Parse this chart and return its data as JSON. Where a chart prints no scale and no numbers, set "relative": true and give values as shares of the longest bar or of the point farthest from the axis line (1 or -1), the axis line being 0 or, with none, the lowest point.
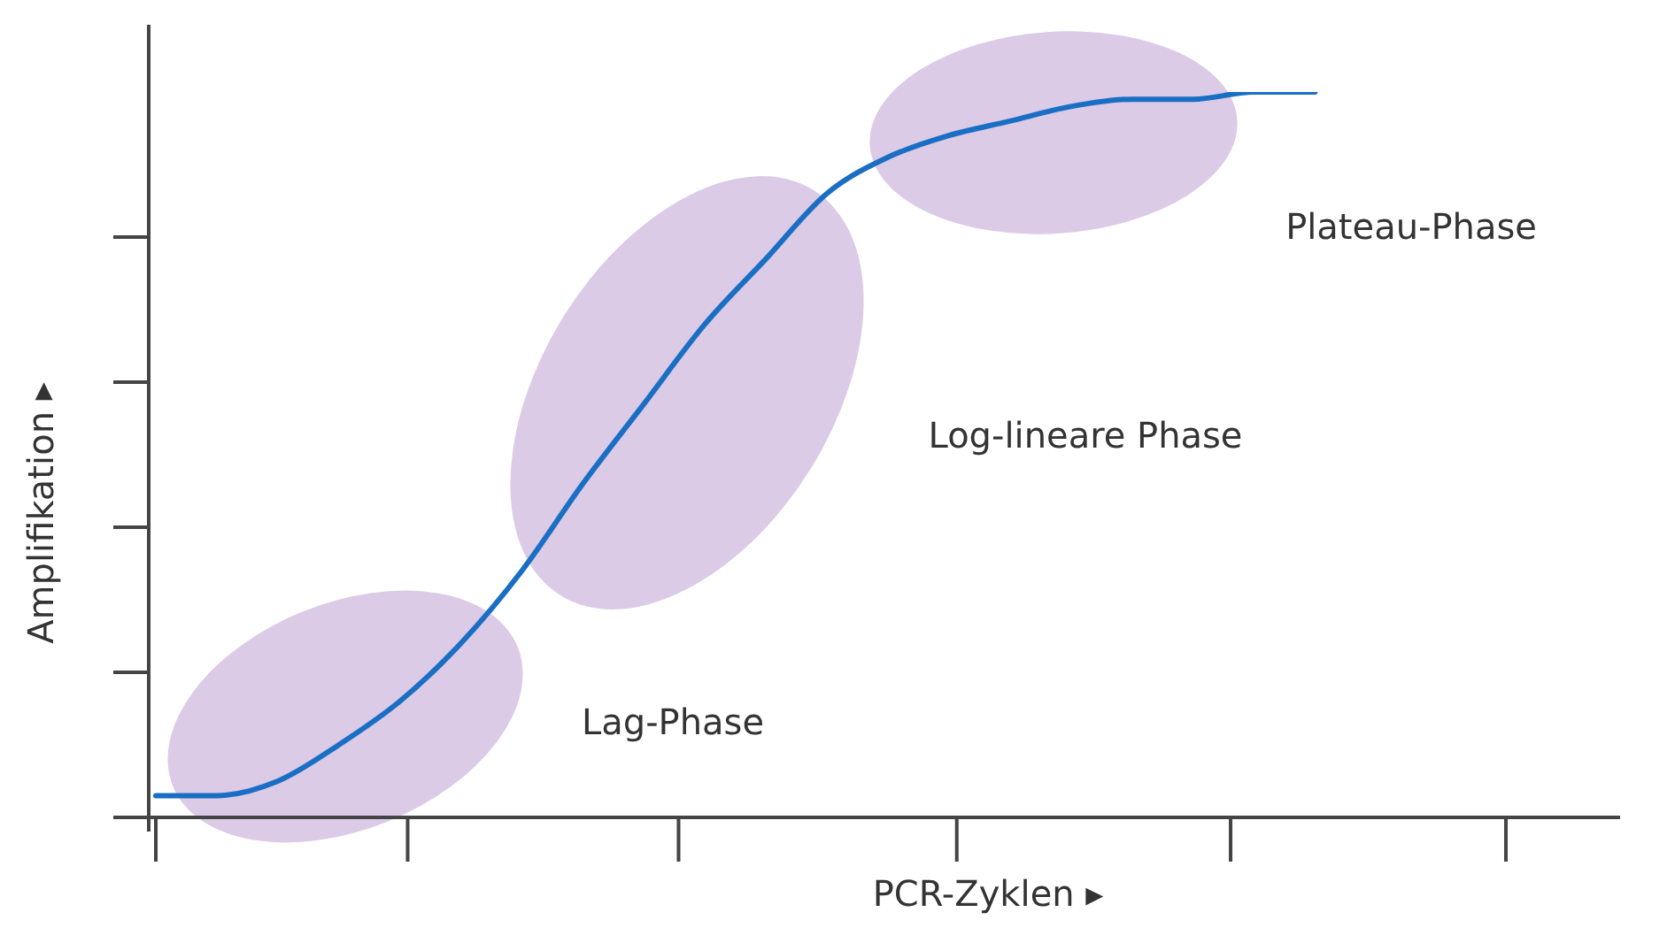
{
  "chart_data": {
    "type": "line",
    "relative": true,
    "xlabel": "PCR-Zyklen ▸",
    "ylabel": "Amplifikation ▸",
    "categories": [
      null,
      null,
      null,
      null,
      null,
      null,
      null,
      null,
      null,
      null,
      null,
      null,
      null,
      null,
      null,
      null,
      null,
      null,
      null,
      null,
      null,
      null,
      null,
      null,
      null
    ],
    "series": [
      {
        "color": "#1a6fc4",
        "values": [
          0.03,
          0.03,
          0.05,
          0.1,
          0.16,
          0.24,
          0.34,
          0.46,
          0.57,
          0.68,
          0.77,
          0.86,
          0.91,
          0.94,
          0.96,
          0.98,
          0.99,
          0.99,
          1.0,
          1.0,
          null,
          null,
          null,
          null,
          null
        ]
      }
    ],
    "annotations": [
      "Lag-Phase",
      "Log-lineare Phase",
      "Plateau-Phase"
    ],
    "legend": false,
    "marker": "none",
    "line_style": "solid"
  }
}
